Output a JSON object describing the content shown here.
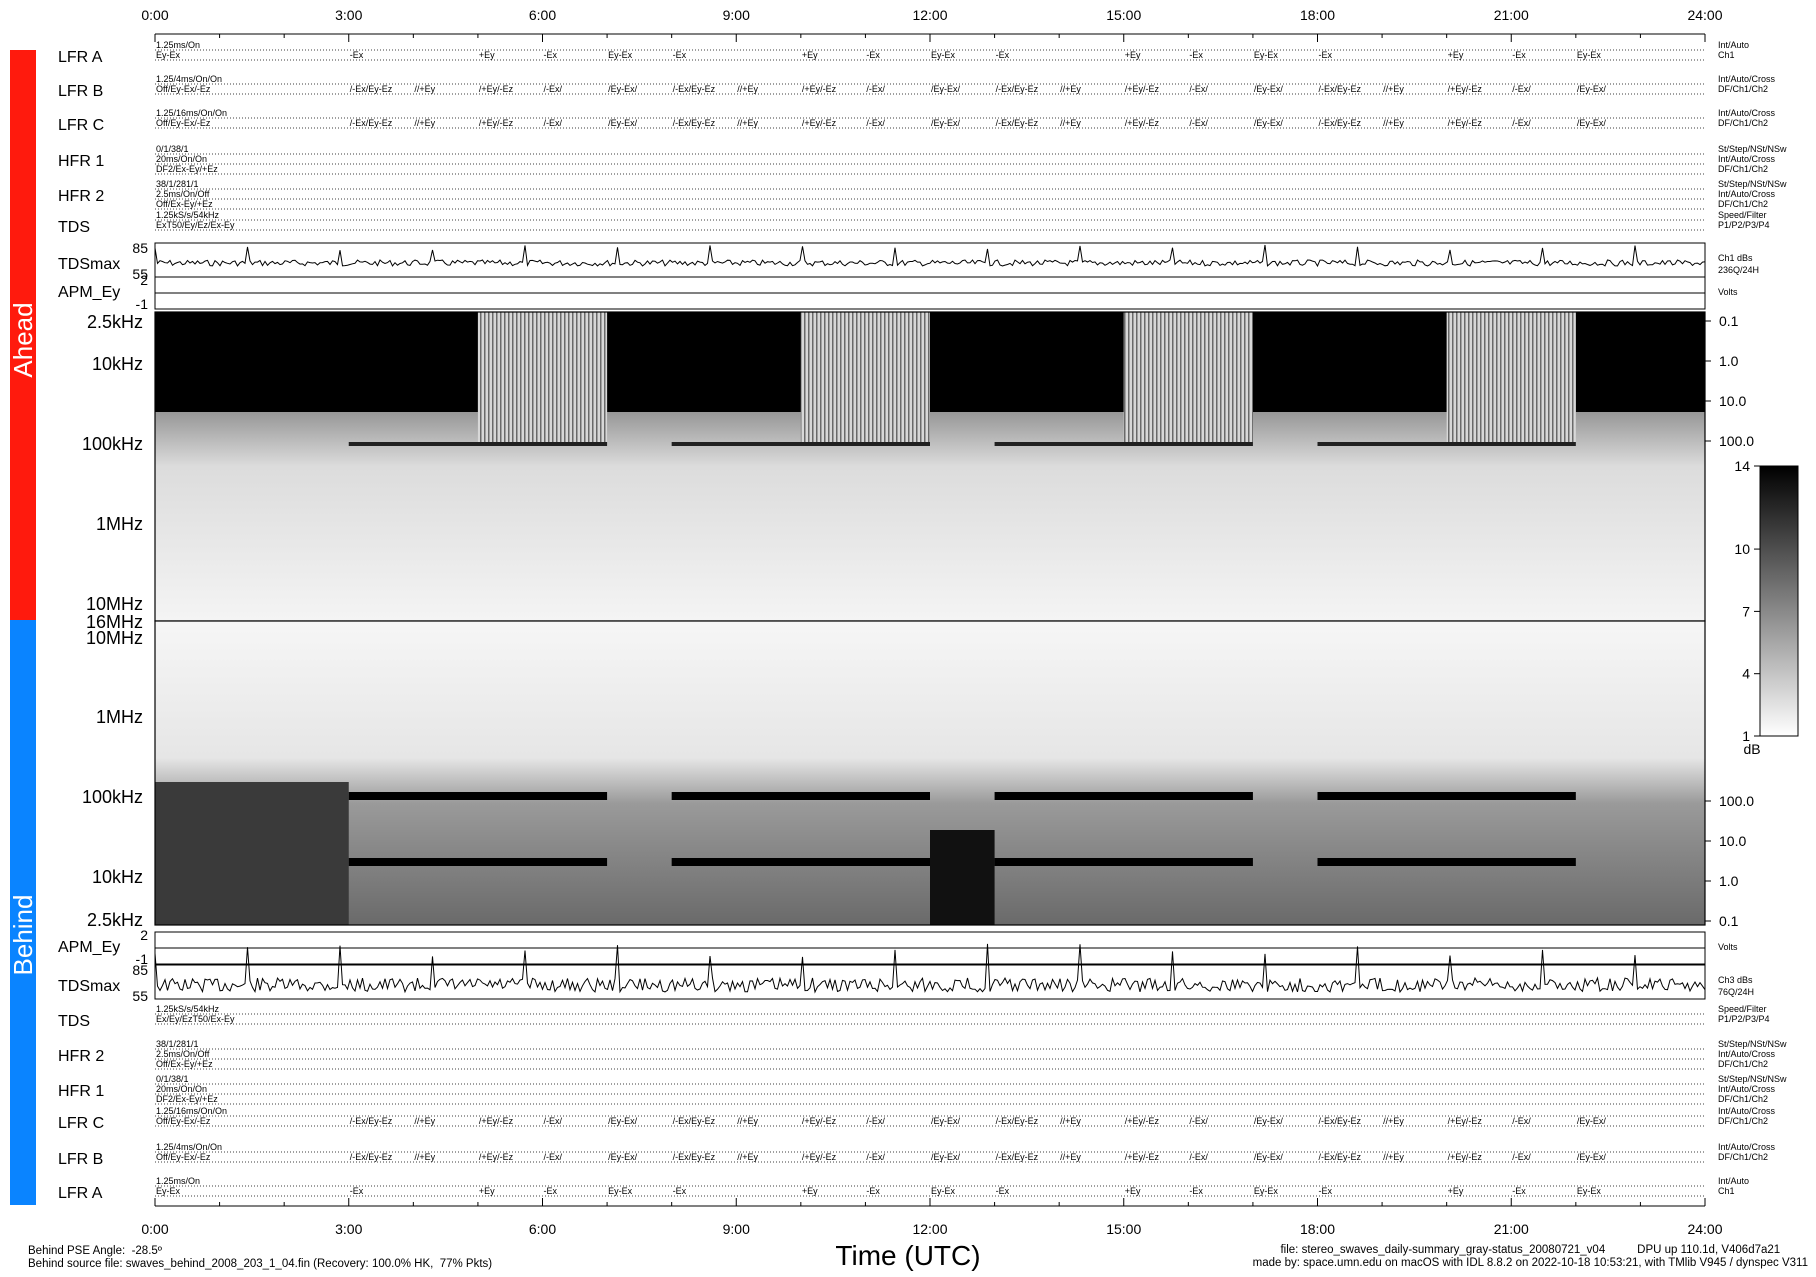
{
  "chart_data": {
    "type": "heatmap",
    "x": {
      "label": "Time (UTC)",
      "range": [
        0,
        24
      ],
      "ticks": [
        "0:00",
        "3:00",
        "6:00",
        "9:00",
        "12:00",
        "15:00",
        "18:00",
        "21:00",
        "24:00"
      ]
    },
    "panels": {
      "ahead": {
        "side_label": "Ahead",
        "color": "#ff1a0d",
        "rows": [
          {
            "label": "LFR A",
            "mode": "1.25ms/On",
            "config": "Ey-Ex",
            "right": [
              "Int/Auto",
              "Ch1"
            ],
            "events": [
              "-Ex",
              "+Ey",
              "-Ex",
              "Ey-Ex",
              "-Ex",
              "+Ey",
              "-Ex",
              "Ey-Ex",
              "-Ex",
              "+Ey",
              "-Ex",
              "Ey-Ex",
              "-Ex",
              "+Ey",
              "-Ex",
              "Ey-Ex"
            ]
          },
          {
            "label": "LFR B",
            "mode": "1.25/4ms/On/On",
            "config": "Off/Ey-Ex/-Ez",
            "right": [
              "Int/Auto/Cross",
              "DF/Ch1/Ch2"
            ],
            "events": [
              "/-Ex/Ey-Ez",
              "//+Ey",
              "/+Ey/-Ez",
              "/-Ex/",
              "/Ey-Ex/",
              "/-Ex/Ey-Ez",
              "//+Ey",
              "/+Ey/-Ez",
              "/-Ex/",
              "/Ey-Ex/",
              "/-Ex/Ey-Ez",
              "//+Ey",
              "/+Ey/-Ez",
              "/-Ex/",
              "/Ey-Ex/",
              "/-Ex/Ey-Ez",
              "//+Ey",
              "/+Ey/-Ez",
              "/-Ex/",
              "/Ey-Ex/"
            ]
          },
          {
            "label": "LFR C",
            "mode": "1.25/16ms/On/On",
            "config": "Off/Ey-Ex/-Ez",
            "right": [
              "Int/Auto/Cross",
              "DF/Ch1/Ch2"
            ],
            "events": [
              "/-Ex/Ey-Ez",
              "//+Ey",
              "/+Ey/-Ez",
              "/-Ex/",
              "/Ey-Ex/",
              "/-Ex/Ey-Ez",
              "//+Ey",
              "/+Ey/-Ez",
              "/-Ex/",
              "/Ey-Ex/",
              "/-Ex/Ey-Ez",
              "//+Ey",
              "/+Ey/-Ez",
              "/-Ex/",
              "/Ey-Ex/",
              "/-Ex/Ey-Ez",
              "//+Ey",
              "/+Ey/-Ez",
              "/-Ex/",
              "/Ey-Ex/"
            ]
          },
          {
            "label": "HFR 1",
            "mode": "0/1/38/1",
            "config": "20ms/On/On",
            "extra": "DF2/Ex-Ey/+Ez",
            "right": [
              "St/Step/NSt/NSw",
              "Int/Auto/Cross",
              "DF/Ch1/Ch2"
            ]
          },
          {
            "label": "HFR 2",
            "mode": "38/1/281/1",
            "config": "2.5ms/On/Off",
            "extra": "Off/Ex-Ey/+Ez",
            "right": [
              "St/Step/NSt/NSw",
              "Int/Auto/Cross",
              "DF/Ch1/Ch2"
            ]
          },
          {
            "label": "TDS",
            "mode": "1.25kS/s/54kHz",
            "config": "ExT50/Ey/Ez/Ex-Ey",
            "right": [
              "Speed/Filter",
              "P1/P2/P3/P4"
            ]
          }
        ],
        "tdsmax": {
          "label": "TDSmax",
          "ymax": "85",
          "ymin": "55",
          "right": [
            "Ch1 dBs",
            "236Q/24H"
          ]
        },
        "apm": {
          "label": "APM_Ey",
          "ymax": "2",
          "ymin": "-1",
          "right": "Volts"
        },
        "freq_labels": [
          "2.5kHz",
          "10kHz",
          "100kHz",
          "1MHz",
          "10MHz"
        ],
        "right_ticks": [
          "0.1",
          "1.0",
          "10.0",
          "100.0"
        ],
        "top_freq": "16MHz"
      },
      "behind": {
        "side_label": "Behind",
        "color": "#0a84ff",
        "rows": [
          {
            "label": "TDS",
            "mode": "1.25kS/s/54kHz",
            "config": "Ex/Ey/EzT50/Ex-Ey",
            "right": [
              "Speed/Filter",
              "P1/P2/P3/P4"
            ]
          },
          {
            "label": "HFR 2",
            "mode": "38/1/281/1",
            "config": "2.5ms/On/Off",
            "extra": "Off/Ex-Ey/+Ez",
            "right": [
              "St/Step/NSt/NSw",
              "Int/Auto/Cross",
              "DF/Ch1/Ch2"
            ]
          },
          {
            "label": "HFR 1",
            "mode": "0/1/38/1",
            "config": "20ms/On/On",
            "extra": "DF2/Ex-Ey/+Ez",
            "right": [
              "St/Step/NSt/NSw",
              "Int/Auto/Cross",
              "DF/Ch1/Ch2"
            ]
          },
          {
            "label": "LFR C",
            "mode": "1.25/16ms/On/On",
            "config": "Off/Ey-Ex/-Ez",
            "right": [
              "Int/Auto/Cross",
              "DF/Ch1/Ch2"
            ],
            "events": [
              "/-Ex/Ey-Ez",
              "//+Ey",
              "/+Ey/-Ez",
              "/-Ex/",
              "/Ey-Ex/",
              "/-Ex/Ey-Ez",
              "//+Ey",
              "/+Ey/-Ez",
              "/-Ex/",
              "/Ey-Ex/",
              "/-Ex/Ey-Ez",
              "//+Ey",
              "/+Ey/-Ez",
              "/-Ex/",
              "/Ey-Ex/",
              "/-Ex/Ey-Ez",
              "//+Ey",
              "/+Ey/-Ez",
              "/-Ex/",
              "/Ey-Ex/"
            ]
          },
          {
            "label": "LFR B",
            "mode": "1.25/4ms/On/On",
            "config": "Off/Ey-Ex/-Ez",
            "right": [
              "Int/Auto/Cross",
              "DF/Ch1/Ch2"
            ],
            "events": [
              "/-Ex/Ey-Ez",
              "//+Ey",
              "/+Ey/-Ez",
              "/-Ex/",
              "/Ey-Ex/",
              "/-Ex/Ey-Ez",
              "//+Ey",
              "/+Ey/-Ez",
              "/-Ex/",
              "/Ey-Ex/",
              "/-Ex/Ey-Ez",
              "//+Ey",
              "/+Ey/-Ez",
              "/-Ex/",
              "/Ey-Ex/",
              "/-Ex/Ey-Ez",
              "//+Ey",
              "/+Ey/-Ez",
              "/-Ex/",
              "/Ey-Ex/"
            ]
          },
          {
            "label": "LFR A",
            "mode": "1.25ms/On",
            "config": "Ey-Ex",
            "right": [
              "Int/Auto",
              "Ch1"
            ],
            "events": [
              "-Ex",
              "+Ey",
              "-Ex",
              "Ey-Ex",
              "-Ex",
              "+Ey",
              "-Ex",
              "Ey-Ex",
              "-Ex",
              "+Ey",
              "-Ex",
              "Ey-Ex",
              "-Ex",
              "+Ey",
              "-Ex",
              "Ey-Ex"
            ]
          }
        ],
        "tdsmax": {
          "label": "TDSmax",
          "ymax": "85",
          "ymin": "55",
          "right": [
            "Ch3 dBs",
            "76Q/24H"
          ]
        },
        "apm": {
          "label": "APM_Ey",
          "ymax": "2",
          "ymin": "-1",
          "right": "Volts"
        },
        "freq_labels": [
          "10MHz",
          "1MHz",
          "100kHz",
          "10kHz",
          "2.5kHz"
        ],
        "right_ticks": [
          "100.0",
          "10.0",
          "1.0",
          "0.1"
        ]
      }
    },
    "lfr_event_hours": [
      3.0,
      5.0,
      6.0,
      7.0,
      8.0,
      10.0,
      11.0,
      12.0,
      13.0,
      15.0,
      16.0,
      17.0,
      18.0,
      20.0,
      21.0,
      22.0
    ],
    "lfr_bc_event_hours": [
      3.0,
      4.0,
      5.0,
      6.0,
      7.0,
      8.0,
      9.0,
      10.0,
      11.0,
      12.0,
      13.0,
      14.0,
      15.0,
      16.0,
      17.0,
      18.0,
      19.0,
      20.0,
      21.0,
      22.0
    ],
    "ahead_dark_blocks": [
      [
        0.0,
        5.0
      ],
      [
        7.0,
        10.0
      ],
      [
        12.0,
        15.0
      ],
      [
        17.0,
        20.0
      ],
      [
        22.0,
        24.0
      ]
    ],
    "ahead_striped_blocks": [
      [
        5.0,
        7.0
      ],
      [
        10.0,
        12.0
      ],
      [
        15.0,
        17.0
      ],
      [
        20.0,
        22.0
      ]
    ],
    "behind_bars": [
      [
        3.0,
        7.0
      ],
      [
        8.0,
        12.0
      ],
      [
        13.0,
        17.0
      ],
      [
        18.0,
        22.0
      ]
    ],
    "colorbar": {
      "ticks": [
        "14",
        "10",
        "7",
        "4",
        "1"
      ],
      "unit": "dB",
      "range": [
        1,
        14
      ]
    }
  },
  "footer": {
    "left_line1": "Behind PSE Angle:  -28.5º",
    "left_line2": "Behind source file: swaves_behind_2008_203_1_04.fin (Recovery: 100.0% HK,  77% Pkts)",
    "center": "Time (UTC)",
    "right_line1": "file: stereo_swaves_daily-summary_gray-status_20080721_v04          DPU up 110.1d, V406d7a21",
    "right_line2": "made by: space.umn.edu on macOS with IDL 8.8.2 on 2022-10-18 10:53:21, with TMlib V945 / dynspec V311"
  }
}
